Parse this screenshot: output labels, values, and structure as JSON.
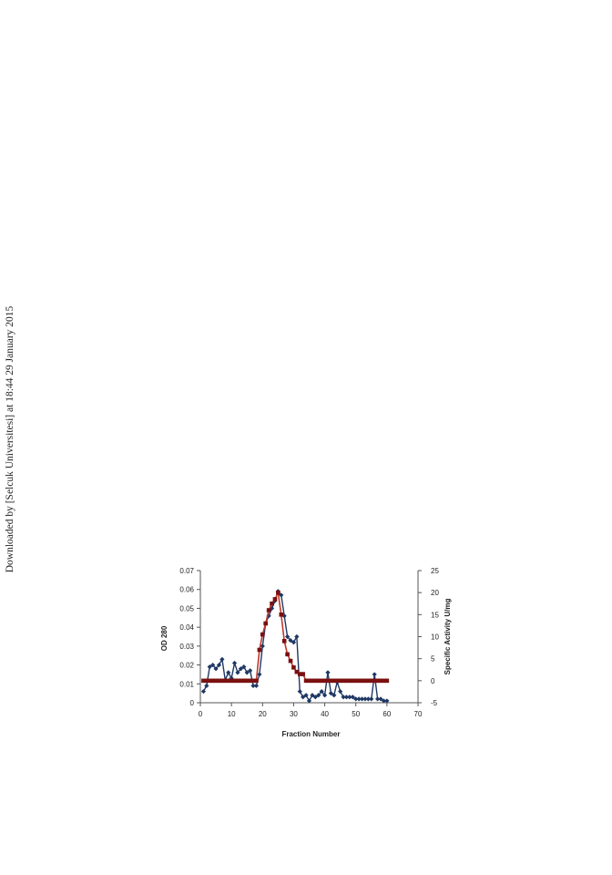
{
  "watermark": "Downloaded by [Selcuk Universitesi] at 18:44 29 January 2015",
  "colors": {
    "od": "#1f3864",
    "activity": "#c0392b",
    "activity_marker": "#7a1010",
    "axis": "#555555",
    "text": "#222222"
  },
  "chart_data": {
    "type": "line",
    "title": "",
    "xlabel": "Fraction Number",
    "ylabel": "OD 280",
    "y2label": "Specific Activity U/mg",
    "xlim": [
      0,
      70
    ],
    "ylim": [
      0,
      0.07
    ],
    "y2lim": [
      -5,
      25
    ],
    "x_ticks": [
      "0",
      "10",
      "20",
      "30",
      "40",
      "50",
      "60",
      "70"
    ],
    "y_ticks": [
      "0",
      "0.01",
      "0.02",
      "0.03",
      "0.04",
      "0.05",
      "0.06",
      "0.07"
    ],
    "y2_ticks": [
      "-5",
      "0",
      "5",
      "10",
      "15",
      "20",
      "25"
    ],
    "grid": false,
    "series": [
      {
        "axis": "left",
        "marker": "diamond",
        "x": [
          1,
          2,
          3,
          4,
          5,
          6,
          7,
          8,
          9,
          10,
          11,
          12,
          13,
          14,
          15,
          16,
          17,
          18,
          19,
          20,
          21,
          22,
          23,
          24,
          25,
          26,
          27,
          28,
          29,
          30,
          31,
          32,
          33,
          34,
          35,
          36,
          37,
          38,
          39,
          40,
          41,
          42,
          43,
          44,
          45,
          46,
          47,
          48,
          49,
          50,
          51,
          52,
          53,
          54,
          55,
          56,
          57,
          58,
          59,
          60
        ],
        "values": [
          0.006,
          0.009,
          0.019,
          0.02,
          0.018,
          0.02,
          0.023,
          0.012,
          0.016,
          0.013,
          0.021,
          0.016,
          0.018,
          0.019,
          0.016,
          0.017,
          0.009,
          0.009,
          0.015,
          0.03,
          0.042,
          0.046,
          0.05,
          0.054,
          0.059,
          0.057,
          0.046,
          0.035,
          0.033,
          0.032,
          0.035,
          0.006,
          0.003,
          0.004,
          0.001,
          0.004,
          0.003,
          0.004,
          0.006,
          0.004,
          0.016,
          0.005,
          0.004,
          0.011,
          0.006,
          0.003,
          0.003,
          0.003,
          0.003,
          0.002,
          0.002,
          0.002,
          0.002,
          0.002,
          0.002,
          0.015,
          0.002,
          0.002,
          0.001,
          0.001
        ]
      },
      {
        "axis": "right",
        "marker": "square",
        "x": [
          1,
          2,
          3,
          4,
          5,
          6,
          7,
          8,
          9,
          10,
          11,
          12,
          13,
          14,
          15,
          16,
          17,
          18,
          19,
          20,
          21,
          22,
          23,
          24,
          25,
          26,
          27,
          28,
          29,
          30,
          31,
          32,
          33,
          34,
          35,
          36,
          37,
          38,
          39,
          40,
          41,
          42,
          43,
          44,
          45,
          46,
          47,
          48,
          49,
          50,
          51,
          52,
          53,
          54,
          55,
          56,
          57,
          58,
          59,
          60
        ],
        "values": [
          0,
          0,
          0,
          0,
          0,
          0,
          0,
          0,
          0,
          0,
          0,
          0,
          0,
          0,
          0,
          0,
          0,
          0,
          7,
          10.5,
          13,
          16,
          17.5,
          18.5,
          20,
          15,
          9,
          6,
          4.5,
          3,
          2,
          1.5,
          1.5,
          0,
          0,
          0,
          0,
          0,
          0,
          0,
          0,
          0,
          0,
          0,
          0,
          0,
          0,
          0,
          0,
          0,
          0,
          0,
          0,
          0,
          0,
          0,
          0,
          0,
          0,
          0
        ]
      }
    ]
  }
}
